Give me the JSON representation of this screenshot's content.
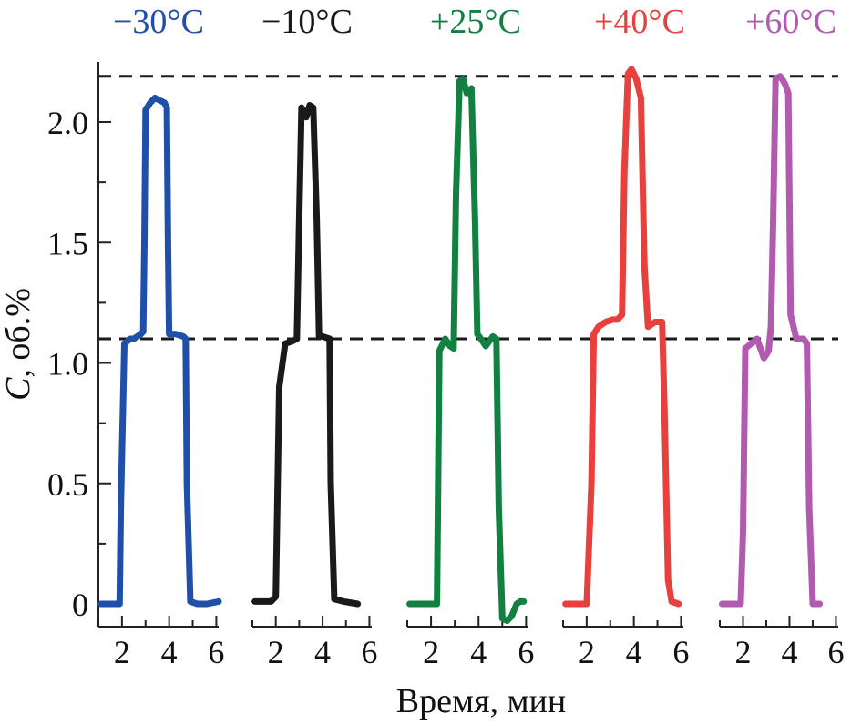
{
  "chart_data": {
    "type": "line",
    "ylabel_var": "C",
    "ylabel_rest": ", об.%",
    "xlabel": "Время, мин",
    "ylim": [
      -0.1,
      2.26
    ],
    "xlim": [
      1,
      6.1
    ],
    "y_ticks": [
      0,
      0.5,
      1.0,
      1.5,
      2.0
    ],
    "y_tick_labels": [
      "0",
      "0.5",
      "1.0",
      "1.5",
      "2.0"
    ],
    "x_ticks": [
      2,
      4,
      6
    ],
    "x_tick_labels": [
      "2",
      "4",
      "6"
    ],
    "reference_lines": [
      1.1,
      2.19
    ],
    "series": [
      {
        "name": "−30°C",
        "color": "#1f4fa8",
        "x": [
          1.1,
          1.7,
          1.9,
          1.95,
          2.1,
          2.35,
          2.5,
          2.8,
          2.9,
          2.95,
          3.0,
          3.2,
          3.4,
          3.6,
          3.8,
          3.9,
          3.95,
          4.0,
          4.3,
          4.6,
          4.7,
          4.75,
          4.9,
          5.2,
          5.6,
          6.1
        ],
        "y": [
          0,
          0,
          0,
          0.4,
          1.08,
          1.1,
          1.1,
          1.12,
          1.13,
          1.5,
          2.05,
          2.08,
          2.1,
          2.09,
          2.08,
          2.06,
          1.5,
          1.12,
          1.12,
          1.11,
          1.1,
          0.5,
          0.01,
          0,
          0,
          0.01
        ]
      },
      {
        "name": "−10°C",
        "color": "#1a1a1a",
        "x": [
          1.1,
          1.8,
          2.0,
          2.15,
          2.4,
          2.7,
          2.9,
          3.0,
          3.1,
          3.3,
          3.45,
          3.6,
          3.75,
          3.85,
          4.0,
          4.3,
          4.35,
          4.5,
          4.9,
          5.5
        ],
        "y": [
          0.01,
          0.01,
          0.03,
          0.9,
          1.08,
          1.09,
          1.1,
          1.6,
          2.06,
          2.02,
          2.07,
          2.06,
          1.6,
          1.11,
          1.11,
          1.1,
          0.5,
          0.02,
          0.01,
          0
        ],
        "xlab": 1
      },
      {
        "name": "+25°C",
        "color": "#118040",
        "x": [
          1.1,
          2.0,
          2.25,
          2.35,
          2.6,
          2.8,
          2.95,
          3.05,
          3.2,
          3.35,
          3.5,
          3.7,
          3.85,
          3.95,
          4.1,
          4.3,
          4.6,
          4.75,
          4.85,
          5.0,
          5.2,
          5.4,
          5.6,
          5.75,
          5.9
        ],
        "y": [
          0,
          0,
          0,
          1.05,
          1.1,
          1.07,
          1.06,
          1.7,
          2.17,
          2.18,
          2.12,
          2.14,
          1.6,
          1.12,
          1.1,
          1.07,
          1.11,
          1.1,
          0.4,
          -0.06,
          -0.07,
          -0.05,
          0,
          0.01,
          0.01
        ]
      },
      {
        "name": "+40°C",
        "color": "#e8403c",
        "x": [
          1.1,
          2.0,
          2.2,
          2.3,
          2.5,
          2.8,
          3.1,
          3.3,
          3.5,
          3.6,
          3.75,
          3.9,
          4.1,
          4.3,
          4.45,
          4.6,
          4.9,
          5.2,
          5.3,
          5.45,
          5.6,
          5.9
        ],
        "y": [
          0,
          0,
          0.5,
          1.12,
          1.15,
          1.17,
          1.18,
          1.18,
          1.2,
          1.8,
          2.2,
          2.22,
          2.18,
          2.1,
          1.4,
          1.15,
          1.17,
          1.17,
          0.8,
          0.1,
          0.01,
          0
        ]
      },
      {
        "name": "+60°C",
        "color": "#b05ab0",
        "x": [
          1.1,
          1.9,
          2.0,
          2.1,
          2.35,
          2.6,
          2.9,
          3.1,
          3.2,
          3.3,
          3.4,
          3.6,
          3.8,
          3.95,
          4.05,
          4.3,
          4.6,
          4.75,
          4.85,
          5.0,
          5.3
        ],
        "y": [
          0,
          0,
          0.3,
          1.06,
          1.08,
          1.1,
          1.02,
          1.05,
          1.15,
          1.6,
          2.18,
          2.19,
          2.16,
          2.12,
          1.2,
          1.1,
          1.1,
          1.08,
          0.4,
          0,
          0
        ]
      }
    ]
  }
}
